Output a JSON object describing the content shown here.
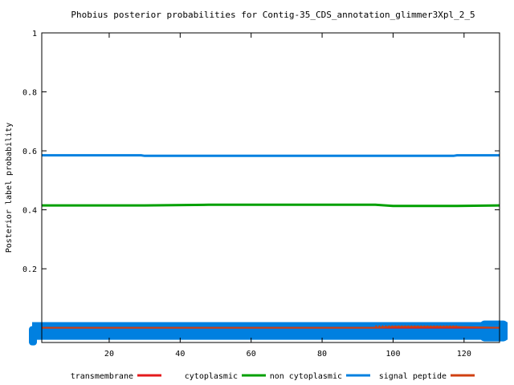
{
  "chart_data": {
    "type": "line",
    "title": "Phobius posterior probabilities for Contig-35_CDS_annotation_glimmer3Xpl_2_5",
    "xlabel": "",
    "ylabel": "Posterior label probability",
    "xlim": [
      1,
      130
    ],
    "ylim": [
      -0.05,
      1
    ],
    "x_ticks": [
      "20",
      "40",
      "60",
      "80",
      "100",
      "120"
    ],
    "x_tick_values": [
      20,
      40,
      60,
      80,
      100,
      120
    ],
    "y_ticks": [
      "0.2",
      "0.4",
      "0.6",
      "0.8",
      "1"
    ],
    "y_tick_values": [
      0.2,
      0.4,
      0.6,
      0.8,
      1.0
    ],
    "legend_position": "bottom",
    "grid": false,
    "series": [
      {
        "name": "transmembrane",
        "color": "#e41a1c",
        "x": [
          1,
          130
        ],
        "y": [
          0.0,
          0.0
        ]
      },
      {
        "name": "cytoplasmic",
        "color": "#00a000",
        "x": [
          1,
          30,
          48,
          95,
          100,
          118,
          130
        ],
        "y": [
          0.415,
          0.415,
          0.417,
          0.417,
          0.413,
          0.413,
          0.415
        ]
      },
      {
        "name": "non cytoplasmic",
        "color": "#0080e0",
        "x": [
          1,
          29,
          30,
          117,
          118,
          130
        ],
        "y": [
          0.585,
          0.585,
          0.583,
          0.583,
          0.585,
          0.585
        ]
      },
      {
        "name": "signal peptide",
        "color": "#d04010",
        "x": [
          1,
          95,
          100,
          118,
          130
        ],
        "y": [
          0.0,
          0.0,
          0.003,
          0.003,
          0.0
        ],
        "dotted_from": 95,
        "dotted_to": 118
      }
    ],
    "legend": [
      {
        "label": "transmembrane",
        "color": "#e41a1c"
      },
      {
        "label": "cytoplasmic",
        "color": "#00a000"
      },
      {
        "label": "non cytoplasmic",
        "color": "#0080e0"
      },
      {
        "label": "signal peptide",
        "color": "#d04010"
      }
    ],
    "baseline_band_color": "#0080e0"
  }
}
